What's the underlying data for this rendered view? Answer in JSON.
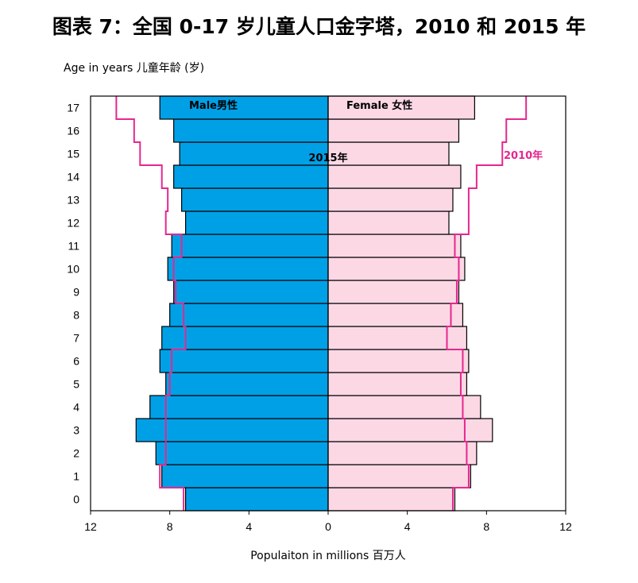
{
  "chart_data": {
    "type": "bar",
    "title": "图表 7：全国 0-17 岁儿童人口金字塔，2010 和 2015 年",
    "ylabel": "Age in years 儿童年龄 (岁)",
    "xlabel": "Populaiton in millions 百万人",
    "xlim": [
      -12,
      12
    ],
    "x_ticks": [
      -12,
      -8,
      -4,
      0,
      4,
      8,
      12
    ],
    "x_tick_labels": [
      "12",
      "8",
      "4",
      "0",
      "4",
      "8",
      "12"
    ],
    "categories": [
      "0",
      "1",
      "2",
      "3",
      "4",
      "5",
      "6",
      "7",
      "8",
      "9",
      "10",
      "11",
      "12",
      "13",
      "14",
      "15",
      "16",
      "17"
    ],
    "series": [
      {
        "name": "Male男性",
        "year_label": "2015年",
        "values": [
          7.2,
          8.4,
          8.7,
          9.7,
          9.0,
          8.2,
          8.5,
          8.4,
          8.0,
          7.8,
          8.1,
          7.9,
          7.2,
          7.4,
          7.8,
          7.5,
          7.8,
          8.5
        ]
      },
      {
        "name": "Female 女性",
        "year_label": "2015年",
        "values": [
          6.4,
          7.2,
          7.5,
          8.3,
          7.7,
          7.0,
          7.1,
          7.0,
          6.8,
          6.6,
          6.9,
          6.7,
          6.1,
          6.3,
          6.7,
          6.1,
          6.6,
          7.4
        ]
      }
    ],
    "overlay_2010": {
      "name": "2010年",
      "male": [
        7.3,
        8.5,
        8.2,
        8.2,
        8.2,
        8.0,
        7.9,
        7.2,
        7.3,
        7.7,
        7.8,
        7.4,
        8.2,
        8.1,
        8.4,
        9.5,
        9.8,
        10.7
      ],
      "female": [
        6.3,
        7.1,
        7.0,
        6.9,
        6.8,
        6.7,
        6.8,
        6.0,
        6.2,
        6.5,
        6.6,
        6.4,
        7.1,
        7.1,
        7.5,
        8.8,
        9.0,
        10.0
      ]
    },
    "colors": {
      "male": "#00a0e6",
      "female": "#fcd8e5",
      "overlay": "#e6278f",
      "bar_border": "#000000"
    }
  }
}
